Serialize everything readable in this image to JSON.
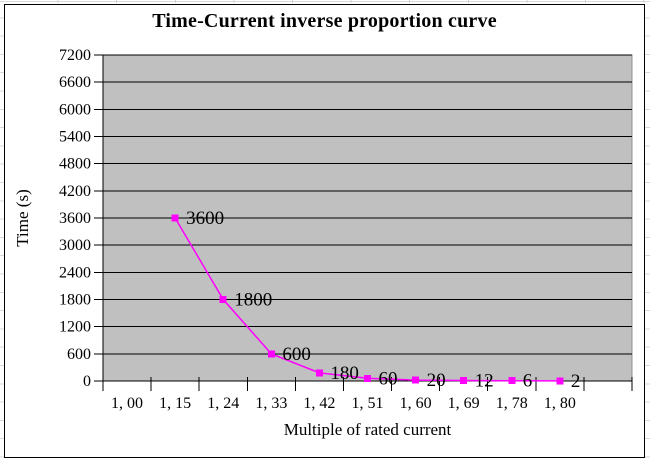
{
  "chart_data": {
    "type": "line",
    "title": "Time-Current inverse proportion curve",
    "xlabel": "Multiple of rated current",
    "ylabel": "Time (s)",
    "categories": [
      "1, 00",
      "1, 15",
      "1, 24",
      "1, 33",
      "1, 42",
      "1, 51",
      "1, 60",
      "1, 69",
      "1, 78",
      "1, 80"
    ],
    "values": [
      null,
      3600,
      1800,
      600,
      180,
      60,
      20,
      12,
      6,
      2
    ],
    "data_labels": [
      "",
      "3600",
      "1800",
      "600",
      "180",
      "60",
      "20",
      "12",
      "6",
      "2"
    ],
    "yticks": [
      0,
      600,
      1200,
      1800,
      2400,
      3000,
      3600,
      4200,
      4800,
      5400,
      6000,
      6600,
      7200
    ],
    "ylim": [
      0,
      7200
    ],
    "grid": "horizontal",
    "legend": "none",
    "marker": "square",
    "colors": {
      "series": "#FF00FF",
      "plot_background": "#C0C0C0",
      "plot_border": "#909090",
      "gridline": "#000000",
      "axis": "#000000",
      "text": "#000000",
      "chart_border": "#000000"
    }
  }
}
